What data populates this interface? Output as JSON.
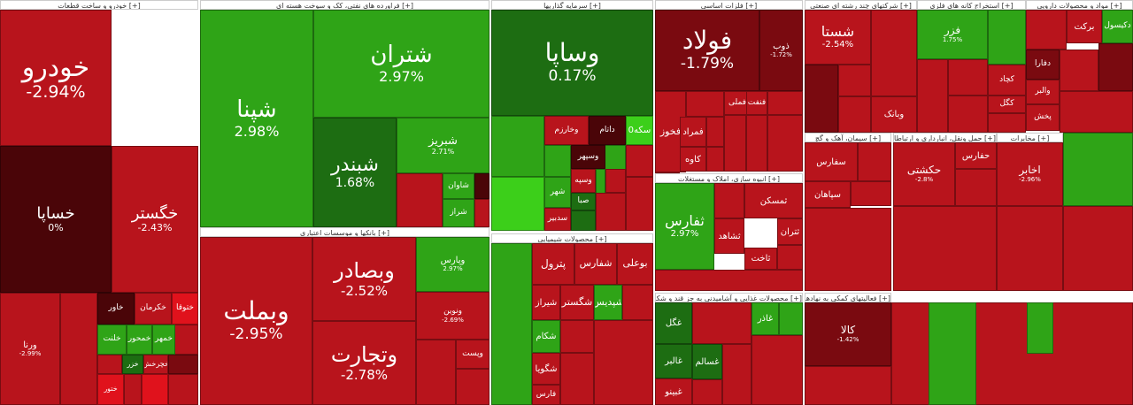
{
  "page": {
    "title": ""
  },
  "colors": {
    "deep_red": "#7a0a10",
    "red": "#b8141c",
    "bright_red": "#e0121c",
    "dark_maroon": "#4a0508",
    "green": "#2fa417",
    "dark_green": "#1d6d12",
    "bright_green": "#3ccf1a",
    "neutral": "#3a0a0c"
  },
  "chart_data": {
    "type": "treemap",
    "sectors": [
      {
        "name": "خودرو و ساخت قطعات",
        "tiles": [
          {
            "symbol": "خودرو",
            "change": "-2.94%",
            "color": "red"
          },
          {
            "symbol": "خساپا",
            "change": "0%",
            "color": "dark_maroon"
          },
          {
            "symbol": "خگستر",
            "change": "-2.43%",
            "color": "red"
          },
          {
            "symbol": "ورنا",
            "change": "-2.99%",
            "color": "red"
          },
          {
            "symbol": "خاور",
            "change": "",
            "color": "dark_maroon"
          },
          {
            "symbol": "خکرمان",
            "change": "",
            "color": "red"
          },
          {
            "symbol": "ختوقا",
            "change": "",
            "color": "bright_red"
          },
          {
            "symbol": "خلنت",
            "change": "",
            "color": "green"
          },
          {
            "symbol": "خمحور",
            "change": "",
            "color": "green"
          },
          {
            "symbol": "خمهر",
            "change": "",
            "color": "green"
          },
          {
            "symbol": "خزر",
            "change": "",
            "color": "dark_green"
          },
          {
            "symbol": "خچرخش",
            "change": "",
            "color": "red"
          },
          {
            "symbol": "ختور",
            "change": "",
            "color": "bright_red"
          }
        ]
      },
      {
        "name": "فراورده های نفتی، کک و سوخت هسته ای",
        "tiles": [
          {
            "symbol": "شپنا",
            "change": "2.98%",
            "color": "green"
          },
          {
            "symbol": "شتران",
            "change": "2.97%",
            "color": "green"
          },
          {
            "symbol": "شبندر",
            "change": "1.68%",
            "color": "dark_green"
          },
          {
            "symbol": "شبریز",
            "change": "2.71%",
            "color": "green"
          },
          {
            "symbol": "شاوان",
            "change": "",
            "color": "green"
          },
          {
            "symbol": "شراز",
            "change": "",
            "color": "green"
          }
        ]
      },
      {
        "name": "بانکها و موسسات اعتباری",
        "tiles": [
          {
            "symbol": "وبملت",
            "change": "-2.95%",
            "color": "red"
          },
          {
            "symbol": "وبصادر",
            "change": "-2.52%",
            "color": "red"
          },
          {
            "symbol": "وتجارت",
            "change": "-2.78%",
            "color": "red"
          },
          {
            "symbol": "وپارس",
            "change": "2.97%",
            "color": "green"
          },
          {
            "symbol": "ونوین",
            "change": "-2.69%",
            "color": "red"
          },
          {
            "symbol": "وپست",
            "change": "",
            "color": "red"
          }
        ]
      },
      {
        "name": "سرمایه گذاریها",
        "tiles": [
          {
            "symbol": "وساپا",
            "change": "0.17%",
            "color": "dark_green"
          },
          {
            "symbol": "وخارزم",
            "change": "",
            "color": "red"
          },
          {
            "symbol": "داتام",
            "change": "",
            "color": "dark_maroon"
          },
          {
            "symbol": "سکه0",
            "change": "",
            "color": "bright_green"
          },
          {
            "symbol": "وسپهر",
            "change": "",
            "color": "dark_maroon"
          },
          {
            "symbol": "وسپه",
            "change": "",
            "color": "red"
          },
          {
            "symbol": "شهر",
            "change": "",
            "color": "green"
          },
          {
            "symbol": "صبا",
            "change": "",
            "color": "dark_green"
          },
          {
            "symbol": "سدبیر",
            "change": "",
            "color": "red"
          }
        ]
      },
      {
        "name": "محصولات شیمیایی",
        "tiles": [
          {
            "symbol": "پترول",
            "change": "",
            "color": "red"
          },
          {
            "symbol": "شفارس",
            "change": "",
            "color": "red"
          },
          {
            "symbol": "بوعلی",
            "change": "",
            "color": "red"
          },
          {
            "symbol": "شیراز",
            "change": "",
            "color": "red"
          },
          {
            "symbol": "شگستر",
            "change": "",
            "color": "red"
          },
          {
            "symbol": "شپدیس",
            "change": "",
            "color": "green"
          },
          {
            "symbol": "شکام",
            "change": "",
            "color": "green"
          },
          {
            "symbol": "شگویا",
            "change": "",
            "color": "red"
          },
          {
            "symbol": "فارس",
            "change": "",
            "color": "red"
          }
        ]
      },
      {
        "name": "فلزات اساسی",
        "tiles": [
          {
            "symbol": "فولاد",
            "change": "-1.79%",
            "color": "deep_red"
          },
          {
            "symbol": "ذوب",
            "change": "-1.72%",
            "color": "deep_red"
          },
          {
            "symbol": "فملی",
            "change": "",
            "color": "red"
          },
          {
            "symbol": "فخوز",
            "change": "",
            "color": "red"
          },
          {
            "symbol": "فمراد",
            "change": "",
            "color": "red"
          },
          {
            "symbol": "کاوه",
            "change": "",
            "color": "red"
          },
          {
            "symbol": "فنفت",
            "change": "",
            "color": "red"
          }
        ]
      },
      {
        "name": "انبوه سازی، املاک و مستغلات",
        "tiles": [
          {
            "symbol": "ثفارس",
            "change": "2.97%",
            "color": "green"
          },
          {
            "symbol": "ثمسکن",
            "change": "",
            "color": "red"
          },
          {
            "symbol": "ثشاهد",
            "change": "",
            "color": "red"
          },
          {
            "symbol": "ثتران",
            "change": "",
            "color": "red"
          },
          {
            "symbol": "ثاخت",
            "change": "",
            "color": "red"
          }
        ]
      },
      {
        "name": "محصولات غذایی و آشامیدنی به جز قند و شکر",
        "tiles": [
          {
            "symbol": "غگل",
            "change": "",
            "color": "dark_green"
          },
          {
            "symbol": "غالبر",
            "change": "",
            "color": "dark_green"
          },
          {
            "symbol": "غسالم",
            "change": "",
            "color": "dark_green"
          },
          {
            "symbol": "غبینو",
            "change": "",
            "color": "red"
          },
          {
            "symbol": "غاذر",
            "change": "",
            "color": "green"
          }
        ]
      },
      {
        "name": "شرکتهای چند رشته ای صنعتی",
        "tiles": [
          {
            "symbol": "شستا",
            "change": "-2.54%",
            "color": "red"
          },
          {
            "symbol": "وبانک",
            "change": "",
            "color": "red"
          }
        ]
      },
      {
        "name": "استخراج کانه های فلزی",
        "tiles": [
          {
            "symbol": "فزر",
            "change": "1.75%",
            "color": "green"
          },
          {
            "symbol": "کچاد",
            "change": "",
            "color": "red"
          },
          {
            "symbol": "کگل",
            "change": "",
            "color": "red"
          }
        ]
      },
      {
        "name": "مواد و محصولات دارویی",
        "tiles": [
          {
            "symbol": "برکت",
            "change": "",
            "color": "red"
          },
          {
            "symbol": "دکیسول",
            "change": "",
            "color": "green"
          },
          {
            "symbol": "دفارا",
            "change": "",
            "color": "deep_red"
          },
          {
            "symbol": "والبر",
            "change": "",
            "color": "red"
          },
          {
            "symbol": "پخش",
            "change": "",
            "color": "red"
          }
        ]
      },
      {
        "name": "سیمان، آهک و گچ",
        "tiles": [
          {
            "symbol": "سفارس",
            "change": "",
            "color": "red"
          },
          {
            "symbol": "سپاهان",
            "change": "",
            "color": "red"
          }
        ]
      },
      {
        "name": "حمل ونقل، انبارداری و ارتباطات",
        "tiles": [
          {
            "symbol": "حکشتی",
            "change": "-2.8%",
            "color": "red"
          },
          {
            "symbol": "حفارس",
            "change": "",
            "color": "red"
          }
        ]
      },
      {
        "name": "مخابرات",
        "tiles": [
          {
            "symbol": "اخابر",
            "change": "-2.96%",
            "color": "red"
          }
        ]
      },
      {
        "name": "فعالیتهای کمکی به نهادهای مالی",
        "tiles": [
          {
            "symbol": "کالا",
            "change": "-1.42%",
            "color": "deep_red"
          }
        ]
      }
    ]
  }
}
